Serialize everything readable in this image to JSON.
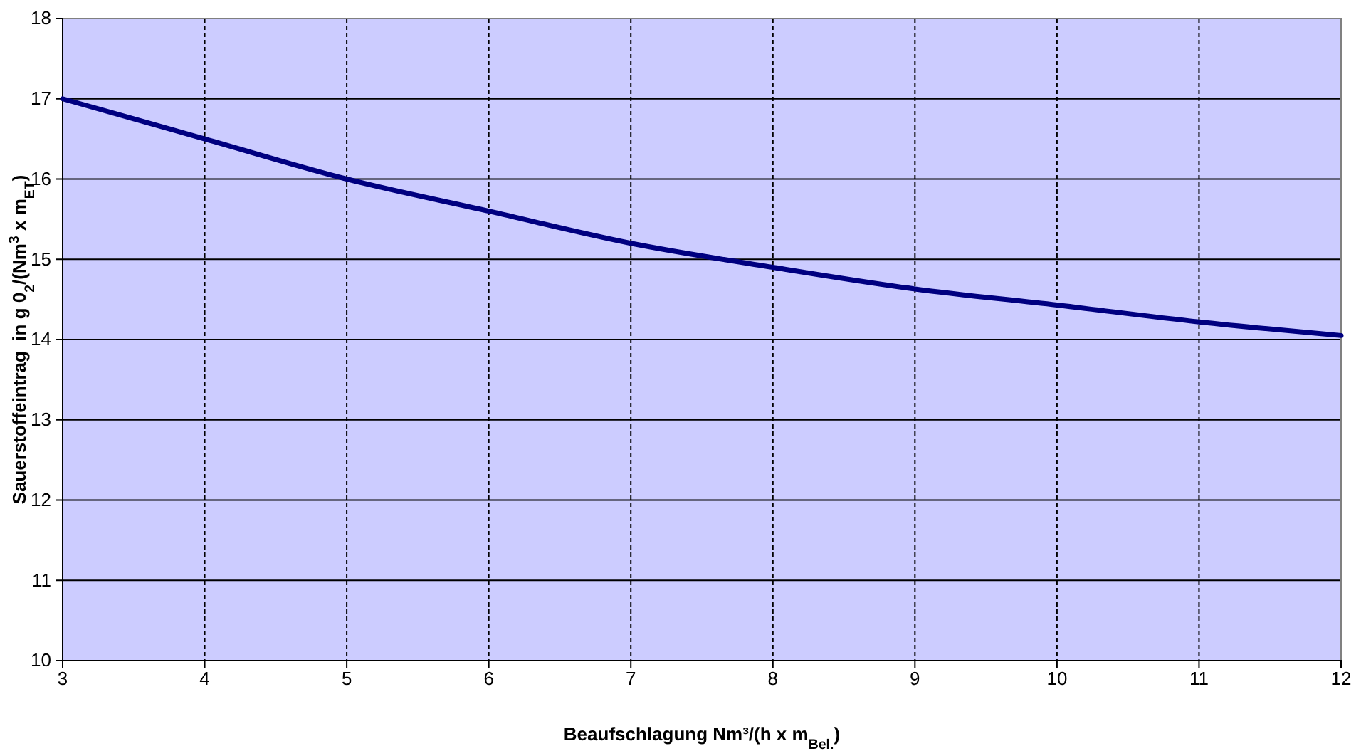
{
  "chart_data": {
    "type": "line",
    "xlabel": "Beaufschlagung Nm³/(h x m$_{Bel.}$)",
    "ylabel": "Sauerstoffeintrag  in g 0$_{2}$/(Nm$^{3}$ x m$_{ET}$)",
    "x": [
      3,
      4,
      5,
      6,
      7,
      8,
      9,
      10,
      11,
      12
    ],
    "series": [
      {
        "color": "#000080",
        "values": [
          17,
          16.5,
          16,
          15.6,
          15.2,
          14.9,
          14.63,
          14.43,
          14.22,
          14.05
        ]
      }
    ],
    "xlim": [
      3,
      12
    ],
    "xticks": [
      3,
      4,
      5,
      6,
      7,
      8,
      9,
      10,
      11,
      12
    ],
    "ylim": [
      10,
      18
    ],
    "yticks": [
      10,
      11,
      12,
      13,
      14,
      15,
      16,
      17,
      18
    ],
    "grid": true,
    "marker": "none",
    "line_style": "solid"
  }
}
